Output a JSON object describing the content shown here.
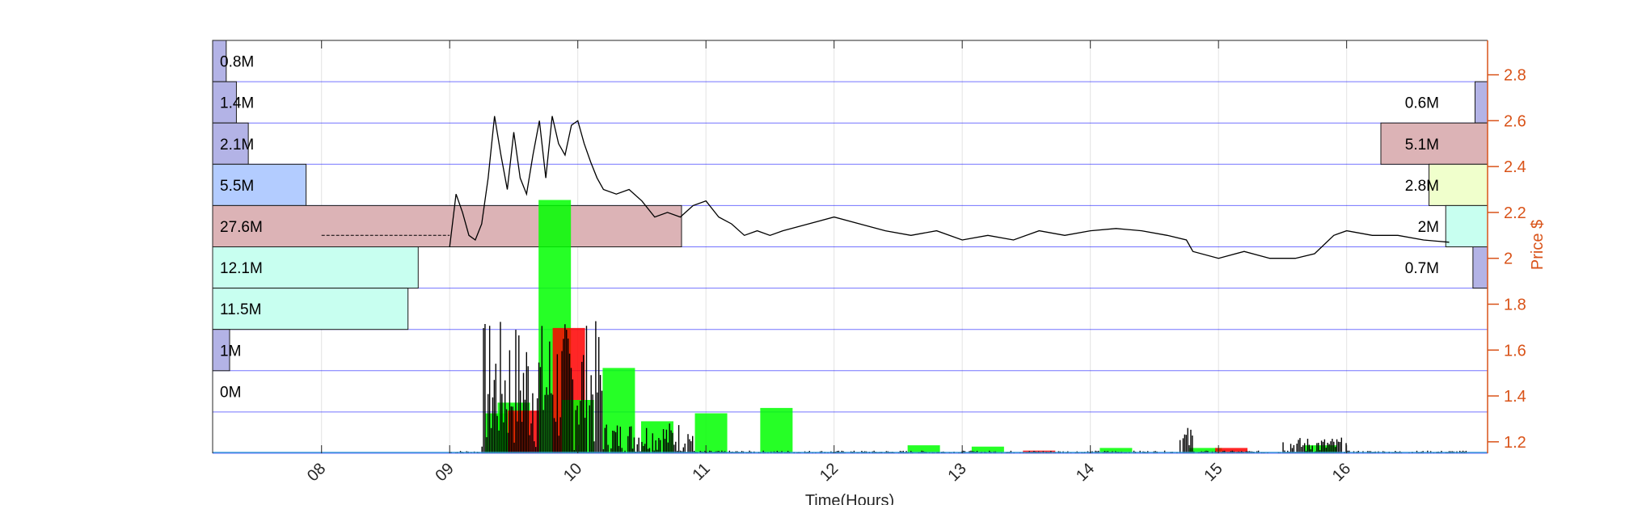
{
  "chart_data": {
    "type": "line",
    "xlabel": "Time(Hours)",
    "ylabel": "Price $",
    "x_range": [
      7.15,
      17.1
    ],
    "x_ticks": [
      "08",
      "09",
      "10",
      "11",
      "12",
      "13",
      "14",
      "15",
      "16"
    ],
    "x_tick_values": [
      8,
      9,
      10,
      11,
      12,
      13,
      14,
      15,
      16
    ],
    "ylim": [
      1.15,
      2.95
    ],
    "y_ticks": [
      "1.2",
      "1.4",
      "1.6",
      "1.8",
      "2",
      "2.2",
      "2.4",
      "2.6",
      "2.8"
    ],
    "y_tick_values": [
      1.2,
      1.4,
      1.6,
      1.8,
      2.0,
      2.2,
      2.4,
      2.6,
      2.8
    ],
    "grid": true,
    "colors": {
      "axis": "#d95319",
      "price": "#000000",
      "band_line": "#0000ff",
      "up_volume": "#00ff00",
      "down_volume": "#ff0000",
      "profile_low": "#b3b3e6",
      "profile_blue": "#b3ccff",
      "profile_red": "#dcb3b6",
      "profile_cyan": "#c8fff0",
      "profile_yellow": "#f0ffcc"
    },
    "left_volume_profile": [
      {
        "label": "0.8M",
        "value": 0.8,
        "color": "#b3b3e6"
      },
      {
        "label": "1.4M",
        "value": 1.4,
        "color": "#b3b3e6"
      },
      {
        "label": "2.1M",
        "value": 2.1,
        "color": "#b3b3e6"
      },
      {
        "label": "5.5M",
        "value": 5.5,
        "color": "#b3ccff"
      },
      {
        "label": "27.6M",
        "value": 27.6,
        "color": "#dcb3b6"
      },
      {
        "label": "12.1M",
        "value": 12.1,
        "color": "#c8fff0"
      },
      {
        "label": "11.5M",
        "value": 11.5,
        "color": "#c8fff0"
      },
      {
        "label": "1M",
        "value": 1.0,
        "color": "#b3b3e6"
      },
      {
        "label": "0M",
        "value": 0.0,
        "color": "#b3b3e6"
      }
    ],
    "right_volume_profile": [
      {
        "label": "0.6M",
        "value": 0.6,
        "color": "#b3b3e6"
      },
      {
        "label": "5.1M",
        "value": 5.1,
        "color": "#dcb3b6"
      },
      {
        "label": "2.8M",
        "value": 2.8,
        "color": "#f0ffcc"
      },
      {
        "label": "2M",
        "value": 2.0,
        "color": "#c8fff0"
      },
      {
        "label": "0.7M",
        "value": 0.7,
        "color": "#b3b3e6"
      }
    ],
    "price_series": {
      "x": [
        9.0,
        9.05,
        9.1,
        9.15,
        9.2,
        9.25,
        9.3,
        9.35,
        9.4,
        9.45,
        9.5,
        9.55,
        9.6,
        9.65,
        9.7,
        9.75,
        9.8,
        9.85,
        9.9,
        9.95,
        10.0,
        10.05,
        10.1,
        10.15,
        10.2,
        10.3,
        10.4,
        10.5,
        10.6,
        10.7,
        10.8,
        10.9,
        11.0,
        11.1,
        11.2,
        11.3,
        11.4,
        11.5,
        11.6,
        11.8,
        12.0,
        12.2,
        12.4,
        12.6,
        12.8,
        13.0,
        13.2,
        13.4,
        13.6,
        13.8,
        14.0,
        14.2,
        14.4,
        14.6,
        14.75,
        14.8,
        15.0,
        15.2,
        15.4,
        15.6,
        15.75,
        15.9,
        16.0,
        16.2,
        16.4,
        16.6,
        16.8
      ],
      "y": [
        2.05,
        2.28,
        2.2,
        2.1,
        2.08,
        2.15,
        2.35,
        2.62,
        2.45,
        2.3,
        2.55,
        2.35,
        2.28,
        2.45,
        2.6,
        2.35,
        2.62,
        2.5,
        2.45,
        2.58,
        2.6,
        2.5,
        2.42,
        2.35,
        2.3,
        2.28,
        2.3,
        2.25,
        2.18,
        2.2,
        2.18,
        2.23,
        2.25,
        2.18,
        2.15,
        2.1,
        2.12,
        2.1,
        2.12,
        2.15,
        2.18,
        2.15,
        2.12,
        2.1,
        2.12,
        2.08,
        2.1,
        2.08,
        2.12,
        2.1,
        2.12,
        2.13,
        2.12,
        2.1,
        2.08,
        2.03,
        2.0,
        2.03,
        2.0,
        2.0,
        2.02,
        2.1,
        2.12,
        2.1,
        2.1,
        2.08,
        2.07
      ]
    },
    "volume_bars": [
      {
        "t": 9.4,
        "v": 0.15,
        "up": true
      },
      {
        "t": 9.5,
        "v": 0.19,
        "up": true
      },
      {
        "t": 9.58,
        "v": 0.16,
        "up": false
      },
      {
        "t": 9.82,
        "v": 0.95,
        "up": true
      },
      {
        "t": 9.93,
        "v": 0.47,
        "up": false
      },
      {
        "t": 10.0,
        "v": 0.2,
        "up": true
      },
      {
        "t": 10.32,
        "v": 0.32,
        "up": true
      },
      {
        "t": 10.62,
        "v": 0.12,
        "up": true
      },
      {
        "t": 11.04,
        "v": 0.15,
        "up": true
      },
      {
        "t": 11.55,
        "v": 0.17,
        "up": true
      },
      {
        "t": 12.7,
        "v": 0.03,
        "up": true
      },
      {
        "t": 13.2,
        "v": 0.025,
        "up": true
      },
      {
        "t": 13.6,
        "v": 0.01,
        "up": false
      },
      {
        "t": 14.2,
        "v": 0.02,
        "up": true
      },
      {
        "t": 14.9,
        "v": 0.02,
        "up": true
      },
      {
        "t": 15.1,
        "v": 0.02,
        "up": false
      },
      {
        "t": 15.8,
        "v": 0.03,
        "up": true
      }
    ]
  }
}
